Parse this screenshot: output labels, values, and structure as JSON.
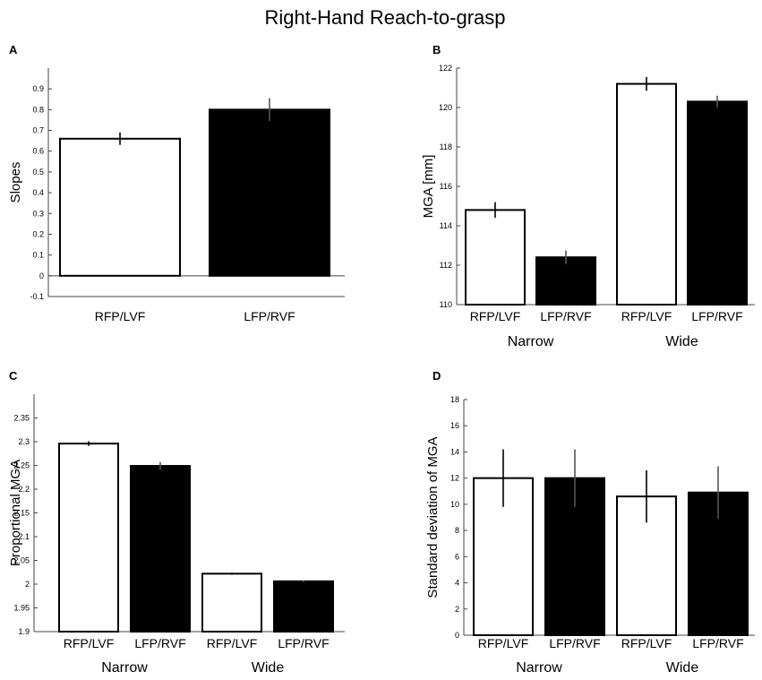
{
  "figure_title": "Right-Hand Reach-to-grasp",
  "chart_data": [
    {
      "panel": "A",
      "type": "bar",
      "title": "",
      "ylabel": "Slopes",
      "xlabel": "",
      "ylim": [
        -0.1,
        1.0
      ],
      "yticks": [
        "-0.1",
        "0",
        "0.1",
        "0.2",
        "0.3",
        "0.4",
        "0.5",
        "0.6",
        "0.7",
        "0.8",
        "0.9"
      ],
      "ytick_values": [
        -0.1,
        0,
        0.1,
        0.2,
        0.3,
        0.4,
        0.5,
        0.6,
        0.7,
        0.8,
        0.9
      ],
      "categories": [
        "RFP/LVF",
        "LFP/RVF"
      ],
      "values": [
        0.66,
        0.8
      ],
      "errors": [
        0.03,
        0.055
      ],
      "fills": [
        "#ffffff",
        "#000000"
      ],
      "groups": [],
      "baseline_line": true
    },
    {
      "panel": "B",
      "type": "bar",
      "title": "",
      "ylabel": "MGA [mm]",
      "xlabel": "",
      "ylim": [
        110,
        122
      ],
      "yticks": [
        "110",
        "112",
        "114",
        "116",
        "118",
        "120",
        "122"
      ],
      "ytick_values": [
        110,
        112,
        114,
        116,
        118,
        120,
        122
      ],
      "categories": [
        "RFP/LVF",
        "LFP/RVF",
        "RFP/LVF",
        "LFP/RVF"
      ],
      "values": [
        114.8,
        112.4,
        121.2,
        120.3
      ],
      "errors": [
        0.4,
        0.35,
        0.35,
        0.3
      ],
      "fills": [
        "#ffffff",
        "#000000",
        "#ffffff",
        "#000000"
      ],
      "groups": [
        "Narrow",
        "Wide"
      ],
      "baseline_line": false
    },
    {
      "panel": "C",
      "type": "bar",
      "title": "",
      "ylabel": "Proportional MGA",
      "xlabel": "",
      "ylim": [
        1.9,
        2.4
      ],
      "yticks": [
        "1.9",
        "1.95",
        "2",
        "2.05",
        "2.1",
        "2.15",
        "2.2",
        "2.25",
        "2.3",
        "2.35"
      ],
      "ytick_values": [
        1.9,
        1.95,
        2.0,
        2.05,
        2.1,
        2.15,
        2.2,
        2.25,
        2.3,
        2.35
      ],
      "categories": [
        "RFP/LVF",
        "LFP/RVF",
        "RFP/LVF",
        "LFP/RVF"
      ],
      "values": [
        2.296,
        2.249,
        2.022,
        2.006
      ],
      "errors": [
        0.005,
        0.008,
        0.002,
        0.002
      ],
      "fills": [
        "#ffffff",
        "#000000",
        "#ffffff",
        "#000000"
      ],
      "groups": [
        "Narrow",
        "Wide"
      ],
      "baseline_line": false
    },
    {
      "panel": "D",
      "type": "bar",
      "title": "",
      "ylabel": "Standard deviation of MGA",
      "xlabel": "",
      "ylim": [
        0,
        18
      ],
      "yticks": [
        "0",
        "2",
        "4",
        "6",
        "8",
        "10",
        "12",
        "14",
        "16",
        "18"
      ],
      "ytick_values": [
        0,
        2,
        4,
        6,
        8,
        10,
        12,
        14,
        16,
        18
      ],
      "categories": [
        "RFP/LVF",
        "LFP/RVF",
        "RFP/LVF",
        "LFP/RVF"
      ],
      "values": [
        12.0,
        12.0,
        10.6,
        10.9
      ],
      "errors": [
        2.2,
        2.2,
        2.0,
        2.0
      ],
      "fills": [
        "#ffffff",
        "#000000",
        "#ffffff",
        "#000000"
      ],
      "groups": [
        "Narrow",
        "Wide"
      ],
      "baseline_line": false
    }
  ]
}
